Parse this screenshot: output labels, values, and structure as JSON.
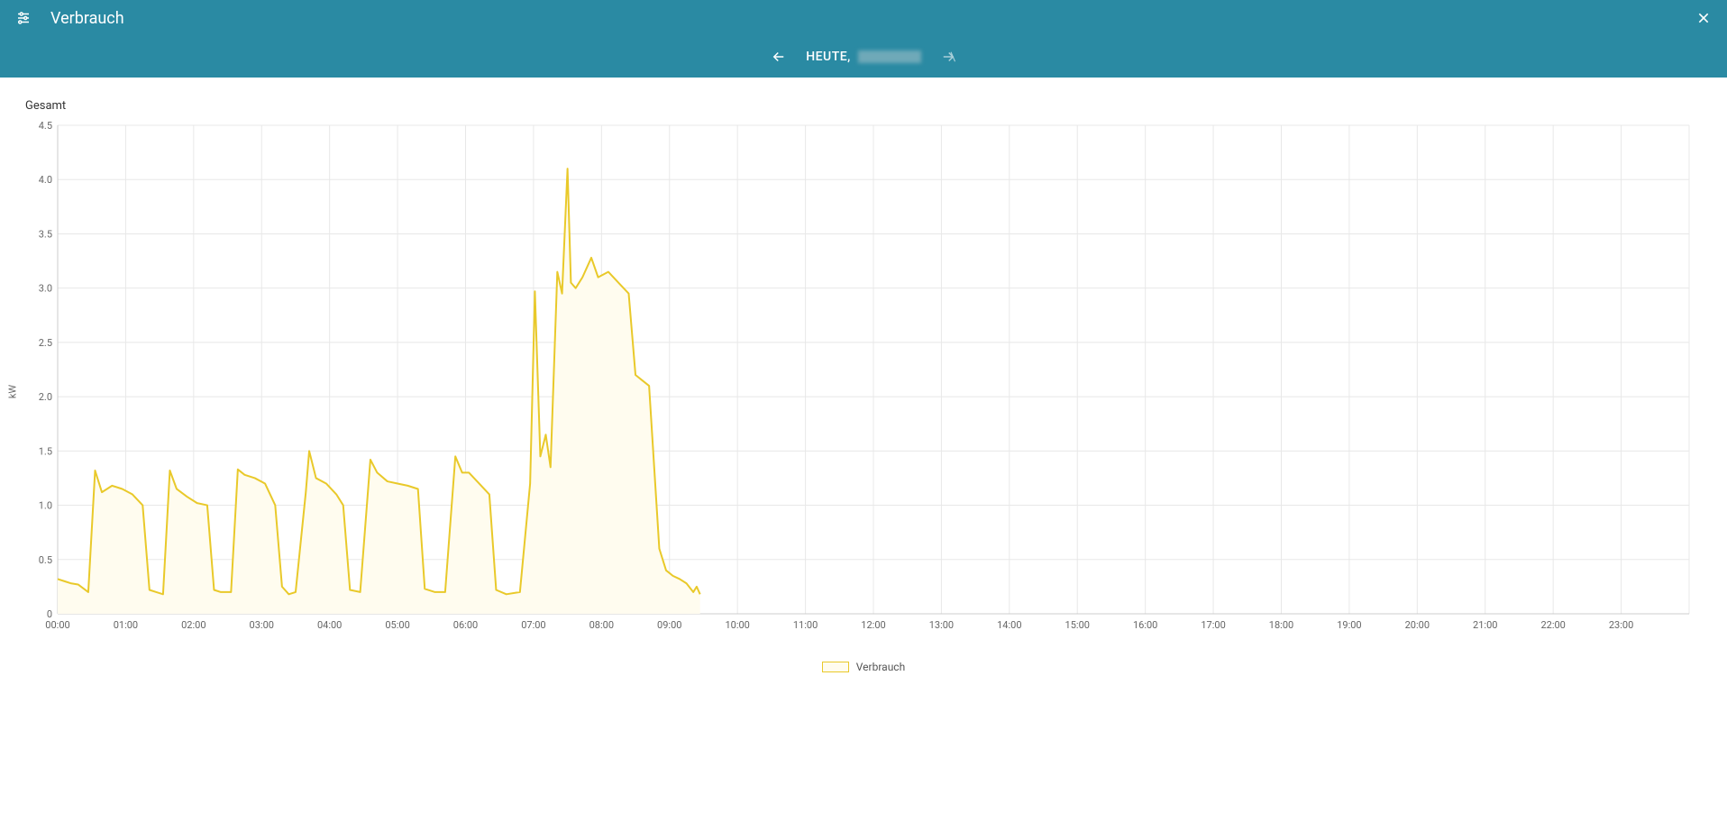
{
  "header": {
    "title": "Verbrauch",
    "date_prefix": "HEUTE,"
  },
  "chart": {
    "title": "Gesamt",
    "type": "line-area",
    "ylabel": "kW",
    "ylim": [
      0,
      4.5
    ],
    "ytick_step": 0.5,
    "yticks": [
      "0",
      "0.5",
      "1.0",
      "1.5",
      "2.0",
      "2.5",
      "3.0",
      "3.5",
      "4.0",
      "4.5"
    ],
    "xticks": [
      "00:00",
      "01:00",
      "02:00",
      "03:00",
      "04:00",
      "05:00",
      "06:00",
      "07:00",
      "08:00",
      "09:00",
      "10:00",
      "11:00",
      "12:00",
      "13:00",
      "14:00",
      "15:00",
      "16:00",
      "17:00",
      "18:00",
      "19:00",
      "20:00",
      "21:00",
      "22:00",
      "23:00"
    ],
    "x_hours_extent": 24,
    "line_color": "#e9c92a",
    "fill_color": "#fffcef",
    "grid_color": "#e8e8e8",
    "axis_color": "#cccccc",
    "background_color": "#ffffff",
    "line_width": 2,
    "label_fontsize": 11,
    "values": [
      [
        0.0,
        0.32
      ],
      [
        0.1,
        0.3
      ],
      [
        0.2,
        0.28
      ],
      [
        0.3,
        0.27
      ],
      [
        0.45,
        0.2
      ],
      [
        0.55,
        1.32
      ],
      [
        0.65,
        1.12
      ],
      [
        0.8,
        1.18
      ],
      [
        0.95,
        1.15
      ],
      [
        1.1,
        1.1
      ],
      [
        1.25,
        1.0
      ],
      [
        1.35,
        0.22
      ],
      [
        1.45,
        0.2
      ],
      [
        1.55,
        0.18
      ],
      [
        1.65,
        1.32
      ],
      [
        1.75,
        1.15
      ],
      [
        1.9,
        1.08
      ],
      [
        2.05,
        1.02
      ],
      [
        2.2,
        1.0
      ],
      [
        2.3,
        0.22
      ],
      [
        2.4,
        0.2
      ],
      [
        2.55,
        0.2
      ],
      [
        2.65,
        1.33
      ],
      [
        2.75,
        1.28
      ],
      [
        2.9,
        1.25
      ],
      [
        3.05,
        1.2
      ],
      [
        3.2,
        1.0
      ],
      [
        3.3,
        0.25
      ],
      [
        3.4,
        0.18
      ],
      [
        3.5,
        0.2
      ],
      [
        3.65,
        1.12
      ],
      [
        3.7,
        1.5
      ],
      [
        3.8,
        1.25
      ],
      [
        3.95,
        1.2
      ],
      [
        4.1,
        1.1
      ],
      [
        4.2,
        1.0
      ],
      [
        4.3,
        0.22
      ],
      [
        4.45,
        0.2
      ],
      [
        4.6,
        1.42
      ],
      [
        4.7,
        1.3
      ],
      [
        4.85,
        1.22
      ],
      [
        5.0,
        1.2
      ],
      [
        5.15,
        1.18
      ],
      [
        5.3,
        1.15
      ],
      [
        5.4,
        0.23
      ],
      [
        5.55,
        0.2
      ],
      [
        5.7,
        0.2
      ],
      [
        5.85,
        1.45
      ],
      [
        5.95,
        1.3
      ],
      [
        6.05,
        1.3
      ],
      [
        6.2,
        1.2
      ],
      [
        6.35,
        1.1
      ],
      [
        6.45,
        0.22
      ],
      [
        6.6,
        0.18
      ],
      [
        6.8,
        0.2
      ],
      [
        6.95,
        1.2
      ],
      [
        7.02,
        2.97
      ],
      [
        7.1,
        1.45
      ],
      [
        7.18,
        1.65
      ],
      [
        7.25,
        1.35
      ],
      [
        7.35,
        3.15
      ],
      [
        7.42,
        2.95
      ],
      [
        7.5,
        4.1
      ],
      [
        7.55,
        3.05
      ],
      [
        7.62,
        3.0
      ],
      [
        7.72,
        3.1
      ],
      [
        7.85,
        3.28
      ],
      [
        7.95,
        3.1
      ],
      [
        8.1,
        3.15
      ],
      [
        8.25,
        3.05
      ],
      [
        8.4,
        2.95
      ],
      [
        8.5,
        2.2
      ],
      [
        8.6,
        2.15
      ],
      [
        8.7,
        2.1
      ],
      [
        8.85,
        0.6
      ],
      [
        8.95,
        0.4
      ],
      [
        9.05,
        0.35
      ],
      [
        9.15,
        0.32
      ],
      [
        9.25,
        0.28
      ],
      [
        9.35,
        0.2
      ],
      [
        9.4,
        0.25
      ],
      [
        9.45,
        0.18
      ]
    ]
  },
  "legend": {
    "label": "Verbrauch",
    "swatch_border": "#e9c92a",
    "swatch_fill": "#fffcef"
  }
}
